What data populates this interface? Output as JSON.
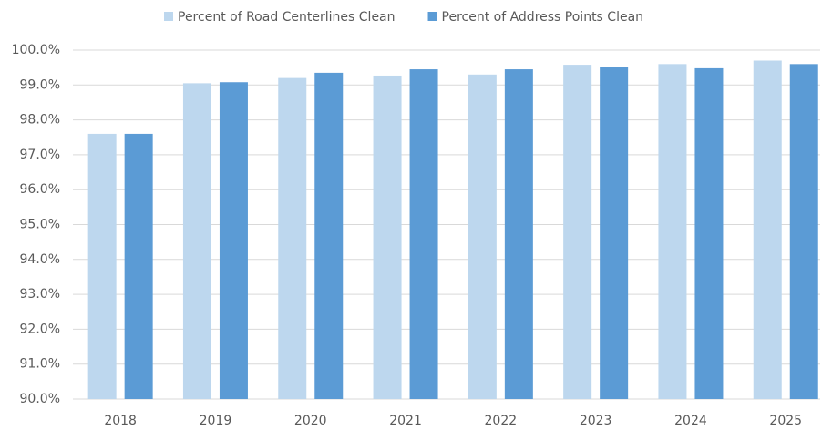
{
  "chart_data": {
    "type": "bar",
    "categories": [
      "2018",
      "2019",
      "2020",
      "2021",
      "2022",
      "2023",
      "2024",
      "2025"
    ],
    "series": [
      {
        "name": "Percent of Road Centerlines Clean",
        "color": "#bdd7ee",
        "values": [
          97.6,
          99.05,
          99.2,
          99.27,
          99.3,
          99.58,
          99.6,
          99.7
        ]
      },
      {
        "name": "Percent of Address Points Clean",
        "color": "#5b9bd5",
        "values": [
          97.6,
          99.08,
          99.35,
          99.45,
          99.45,
          99.52,
          99.48,
          99.6
        ]
      }
    ],
    "ylim": [
      90,
      100
    ],
    "yticks": [
      {
        "value": 90,
        "label": "90.0%"
      },
      {
        "value": 91,
        "label": "91.0%"
      },
      {
        "value": 92,
        "label": "92.0%"
      },
      {
        "value": 93,
        "label": "93.0%"
      },
      {
        "value": 94,
        "label": "94.0%"
      },
      {
        "value": 95,
        "label": "95.0%"
      },
      {
        "value": 96,
        "label": "96.0%"
      },
      {
        "value": 97,
        "label": "97.0%"
      },
      {
        "value": 98,
        "label": "98.0%"
      },
      {
        "value": 99,
        "label": "99.0%"
      },
      {
        "value": 100,
        "label": "100.0%"
      }
    ],
    "grid": true,
    "legend": "top"
  }
}
